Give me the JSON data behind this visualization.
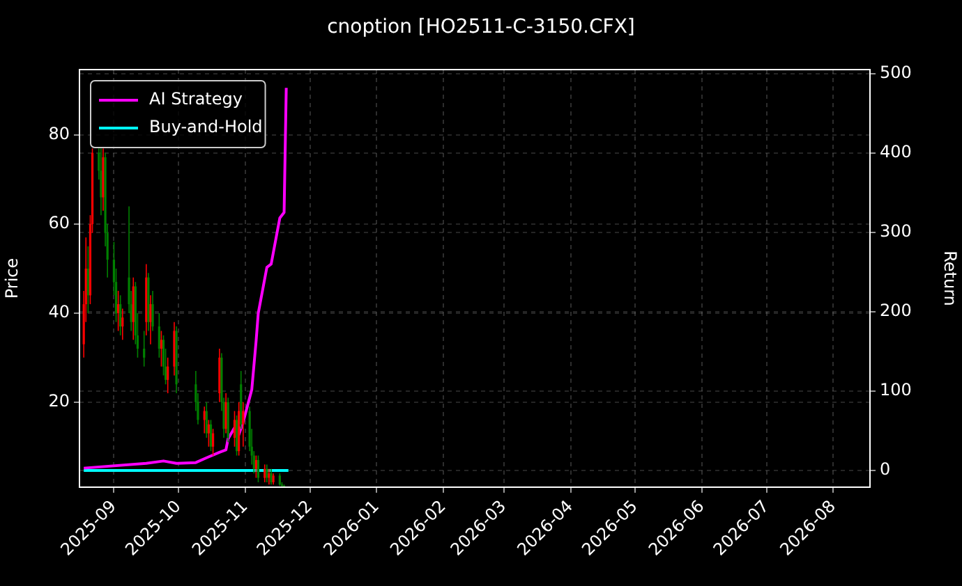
{
  "chart_data": {
    "type": "candlestick",
    "title": "cnoption [HO2511-C-3150.CFX]",
    "ylabel": "Price",
    "y2label": "Return",
    "x": [
      "2025-08-18",
      "2025-08-19",
      "2025-08-20",
      "2025-08-21",
      "2025-08-22",
      "2025-08-25",
      "2025-08-26",
      "2025-08-27",
      "2025-08-28",
      "2025-08-29",
      "2025-09-01",
      "2025-09-02",
      "2025-09-03",
      "2025-09-04",
      "2025-09-05",
      "2025-09-08",
      "2025-09-09",
      "2025-09-10",
      "2025-09-11",
      "2025-09-12",
      "2025-09-15",
      "2025-09-16",
      "2025-09-17",
      "2025-09-18",
      "2025-09-19",
      "2025-09-22",
      "2025-09-23",
      "2025-09-24",
      "2025-09-25",
      "2025-09-26",
      "2025-09-29",
      "2025-09-30",
      "2025-10-09",
      "2025-10-10",
      "2025-10-13",
      "2025-10-14",
      "2025-10-15",
      "2025-10-16",
      "2025-10-17",
      "2025-10-20",
      "2025-10-21",
      "2025-10-22",
      "2025-10-23",
      "2025-10-24",
      "2025-10-27",
      "2025-10-28",
      "2025-10-29",
      "2025-10-30",
      "2025-10-31",
      "2025-11-03",
      "2025-11-04",
      "2025-11-05",
      "2025-11-06",
      "2025-11-07",
      "2025-11-10",
      "2025-11-11",
      "2025-11-12",
      "2025-11-13",
      "2025-11-14",
      "2025-11-17",
      "2025-11-18",
      "2025-11-19"
    ],
    "ohlc": [
      [
        33,
        45,
        30,
        42
      ],
      [
        42,
        57,
        38,
        50
      ],
      [
        50,
        55,
        40,
        44
      ],
      [
        44,
        62,
        42,
        60
      ],
      [
        60,
        77,
        58,
        76
      ],
      [
        76,
        77,
        70,
        72
      ],
      [
        72,
        77,
        62,
        66
      ],
      [
        66,
        77,
        63,
        75
      ],
      [
        75,
        76,
        55,
        58
      ],
      [
        58,
        60,
        48,
        52
      ],
      [
        52,
        56,
        44,
        47
      ],
      [
        47,
        50,
        38,
        40
      ],
      [
        40,
        45,
        36,
        42
      ],
      [
        42,
        44,
        35,
        37
      ],
      [
        37,
        41,
        34,
        39
      ],
      [
        48,
        64,
        40,
        42
      ],
      [
        42,
        45,
        36,
        38
      ],
      [
        38,
        48,
        34,
        46
      ],
      [
        46,
        47,
        33,
        35
      ],
      [
        35,
        40,
        30,
        32
      ],
      [
        32,
        36,
        28,
        30
      ],
      [
        38,
        51,
        35,
        48
      ],
      [
        48,
        49,
        36,
        38
      ],
      [
        38,
        44,
        33,
        42
      ],
      [
        42,
        45,
        36,
        37
      ],
      [
        37,
        40,
        30,
        32
      ],
      [
        32,
        36,
        28,
        34
      ],
      [
        34,
        35,
        26,
        28
      ],
      [
        28,
        32,
        24,
        25
      ],
      [
        25,
        30,
        22,
        28
      ],
      [
        28,
        38,
        26,
        36
      ],
      [
        36,
        37,
        22,
        24
      ],
      [
        24,
        27,
        18,
        20
      ],
      [
        20,
        22,
        15,
        16
      ],
      [
        16,
        19,
        13,
        18
      ],
      [
        18,
        20,
        12,
        13
      ],
      [
        13,
        16,
        10,
        15
      ],
      [
        15,
        16,
        9,
        10
      ],
      [
        10,
        14,
        8,
        13
      ],
      [
        22,
        32,
        20,
        30
      ],
      [
        30,
        31,
        18,
        20
      ],
      [
        20,
        21,
        12,
        14
      ],
      [
        14,
        22,
        13,
        20
      ],
      [
        20,
        21,
        11,
        12
      ],
      [
        12,
        18,
        10,
        16
      ],
      [
        16,
        17,
        8,
        9
      ],
      [
        9,
        20,
        8,
        18
      ],
      [
        24,
        27,
        14,
        15
      ],
      [
        15,
        20,
        10,
        18
      ],
      [
        18,
        19,
        9,
        10
      ],
      [
        10,
        14,
        6,
        8
      ],
      [
        8,
        9,
        4,
        5
      ],
      [
        5,
        8,
        3,
        7
      ],
      [
        7,
        8,
        2,
        3
      ],
      [
        3,
        6,
        2,
        5
      ],
      [
        5,
        6,
        2,
        3
      ],
      [
        3,
        5,
        1.5,
        4
      ],
      [
        4,
        5,
        1.5,
        2
      ],
      [
        2,
        4,
        1.5,
        3.5
      ],
      [
        3.5,
        4,
        1.2,
        1.5
      ],
      [
        1.5,
        2,
        1,
        1.2
      ],
      [
        1.2,
        1.5,
        0.9,
        1
      ]
    ],
    "colors": [
      "#ff0000",
      "#ff0000",
      "#008000",
      "#ff0000",
      "#ff0000",
      "#008000",
      "#008000",
      "#ff0000",
      "#008000",
      "#008000",
      "#008000",
      "#008000",
      "#ff0000",
      "#008000",
      "#ff0000",
      "#008000",
      "#008000",
      "#ff0000",
      "#008000",
      "#008000",
      "#008000",
      "#ff0000",
      "#008000",
      "#ff0000",
      "#008000",
      "#008000",
      "#ff0000",
      "#008000",
      "#008000",
      "#ff0000",
      "#ff0000",
      "#008000",
      "#008000",
      "#008000",
      "#ff0000",
      "#008000",
      "#ff0000",
      "#008000",
      "#ff0000",
      "#ff0000",
      "#008000",
      "#008000",
      "#ff0000",
      "#008000",
      "#ff0000",
      "#008000",
      "#ff0000",
      "#008000",
      "#ff0000",
      "#008000",
      "#008000",
      "#008000",
      "#ff0000",
      "#008000",
      "#ff0000",
      "#008000",
      "#ff0000",
      "#008000",
      "#ff0000",
      "#008000",
      "#008000",
      "#008000"
    ],
    "series": [
      {
        "name": "AI Strategy",
        "type": "line",
        "axis": "y2",
        "color": "#ff00ff",
        "x": [
          "2025-08-18",
          "2025-09-16",
          "2025-09-24",
          "2025-09-30",
          "2025-10-09",
          "2025-10-14",
          "2025-10-20",
          "2025-10-23",
          "2025-10-24",
          "2025-10-27",
          "2025-10-29",
          "2025-10-31",
          "2025-11-04",
          "2025-11-06",
          "2025-11-07",
          "2025-11-11",
          "2025-11-13",
          "2025-11-17",
          "2025-11-19",
          "2025-11-20"
        ],
        "values": [
          3,
          9,
          12,
          9,
          10,
          16,
          23,
          26,
          40,
          54,
          45,
          61,
          102,
          163,
          198,
          256,
          260,
          318,
          325,
          482
        ]
      },
      {
        "name": "Buy-and-Hold",
        "type": "line",
        "axis": "y2",
        "color": "#00ffff",
        "x": [
          "2025-08-18",
          "2025-11-21"
        ],
        "values": [
          0,
          0
        ]
      }
    ],
    "xlim": [
      "2025-08-16",
      "2026-08-18"
    ],
    "xticks": [
      "2025-09",
      "2025-10",
      "2025-11",
      "2025-12",
      "2026-01",
      "2026-02",
      "2026-03",
      "2026-04",
      "2026-05",
      "2026-06",
      "2026-07",
      "2026-08"
    ],
    "ylim": [
      0.9,
      94.7
    ],
    "yticks": [
      20,
      40,
      60,
      80
    ],
    "y2lim": [
      -21,
      505
    ],
    "y2ticks": [
      0,
      100,
      200,
      300,
      400,
      500
    ],
    "grid": true,
    "legend": "top left"
  }
}
